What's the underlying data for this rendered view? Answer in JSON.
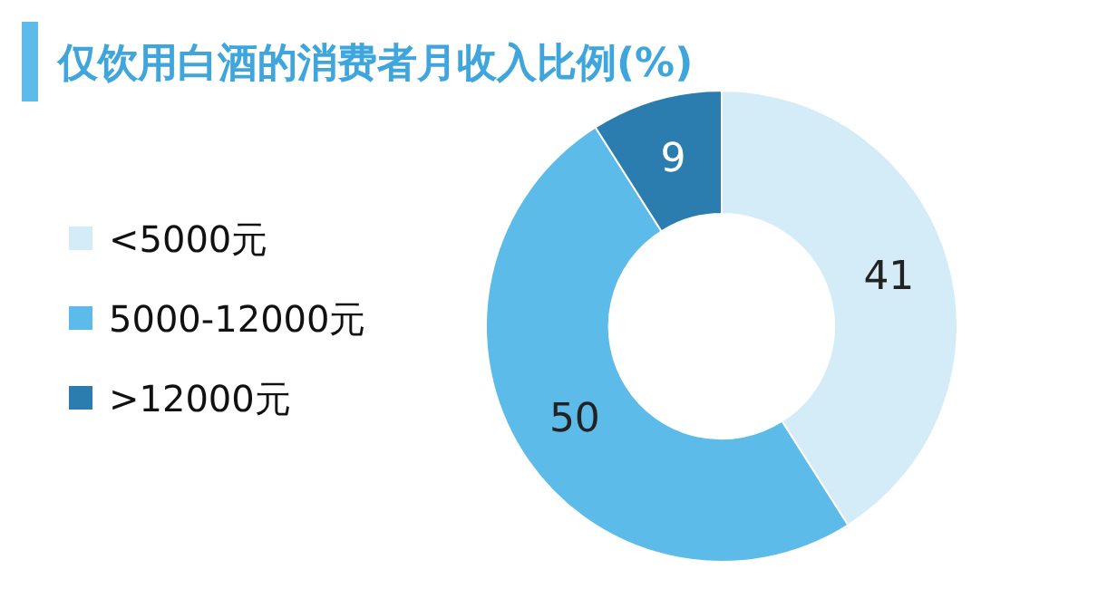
{
  "chart_data": {
    "type": "donut",
    "title": "仅饮用白酒的消费者月收入比例(%)",
    "categories": [
      "<5000元",
      "5000-12000元",
      ">12000元"
    ],
    "values": [
      41,
      50,
      9
    ],
    "colors": [
      "#d4ebf8",
      "#5cbbe8",
      "#2b7db0"
    ],
    "data_labels": true,
    "legend": "left"
  }
}
